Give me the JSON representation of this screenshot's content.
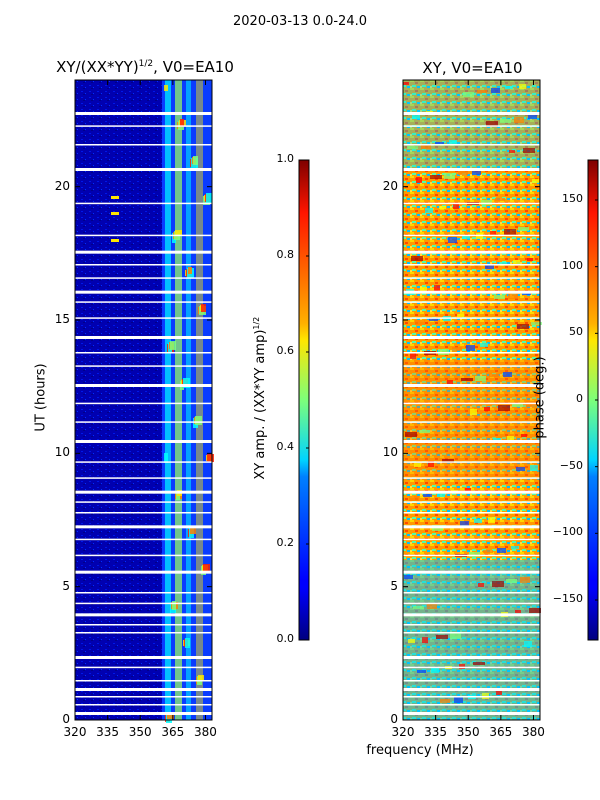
{
  "figure": {
    "title": "2020-03-13 0.0-24.0",
    "xlabel": "frequency (MHz)"
  },
  "chart_data": [
    {
      "type": "heatmap",
      "title": "XY/(XX*YY)",
      "title_sup": "1/2",
      "title_suffix": ", V0=EA10",
      "ylabel": "UT (hours)",
      "x_ticks": [
        "320",
        "335",
        "350",
        "365",
        "380"
      ],
      "x_values": [
        320,
        335,
        350,
        365,
        380
      ],
      "xlim": [
        320,
        383
      ],
      "y_ticks": [
        "0",
        "5",
        "10",
        "15",
        "20"
      ],
      "y_values": [
        0,
        5,
        10,
        15,
        20
      ],
      "ylim": [
        0,
        24
      ],
      "colorbar": {
        "label": "XY amp. / (XX*YY amp)",
        "label_sup": "1/2",
        "ticks": [
          "0.0",
          "0.2",
          "0.4",
          "0.6",
          "0.8",
          "1.0"
        ],
        "values": [
          0.0,
          0.2,
          0.4,
          0.6,
          0.8,
          1.0
        ],
        "range": [
          0.0,
          1.0
        ],
        "colormap": "jet"
      }
    },
    {
      "type": "heatmap",
      "title": "XY, V0=EA10",
      "ylabel": "UT (hours)",
      "x_ticks": [
        "320",
        "335",
        "350",
        "365",
        "380"
      ],
      "x_values": [
        320,
        335,
        350,
        365,
        380
      ],
      "xlim": [
        320,
        383
      ],
      "y_ticks": [
        "0",
        "5",
        "10",
        "15",
        "20"
      ],
      "y_values": [
        0,
        5,
        10,
        15,
        20
      ],
      "ylim": [
        0,
        24
      ],
      "colorbar": {
        "label": "phase (deg.)",
        "ticks": [
          "−150",
          "−100",
          "−50",
          "0",
          "50",
          "100",
          "150"
        ],
        "values": [
          -150,
          -100,
          -50,
          0,
          50,
          100,
          150
        ],
        "range": [
          -180,
          180
        ],
        "colormap": "jet"
      }
    }
  ],
  "gap_rows_hours": [
    0.3,
    0.6,
    0.9,
    1.2,
    1.5,
    2.0,
    2.4,
    3.3,
    3.6,
    4.0,
    4.4,
    4.8,
    5.6,
    6.2,
    6.8,
    7.3,
    7.8,
    8.2,
    8.6,
    9.1,
    9.7,
    10.5,
    11.2,
    11.9,
    12.6,
    13.3,
    13.8,
    14.4,
    15.1,
    15.7,
    16.1,
    16.6,
    17.1,
    17.6,
    18.2,
    19.4,
    20.7,
    21.6,
    22.3,
    22.8
  ],
  "colors": {
    "jet_low": "#00007f",
    "jet_mid": "#7fff7f",
    "jet_high": "#7f0000"
  }
}
